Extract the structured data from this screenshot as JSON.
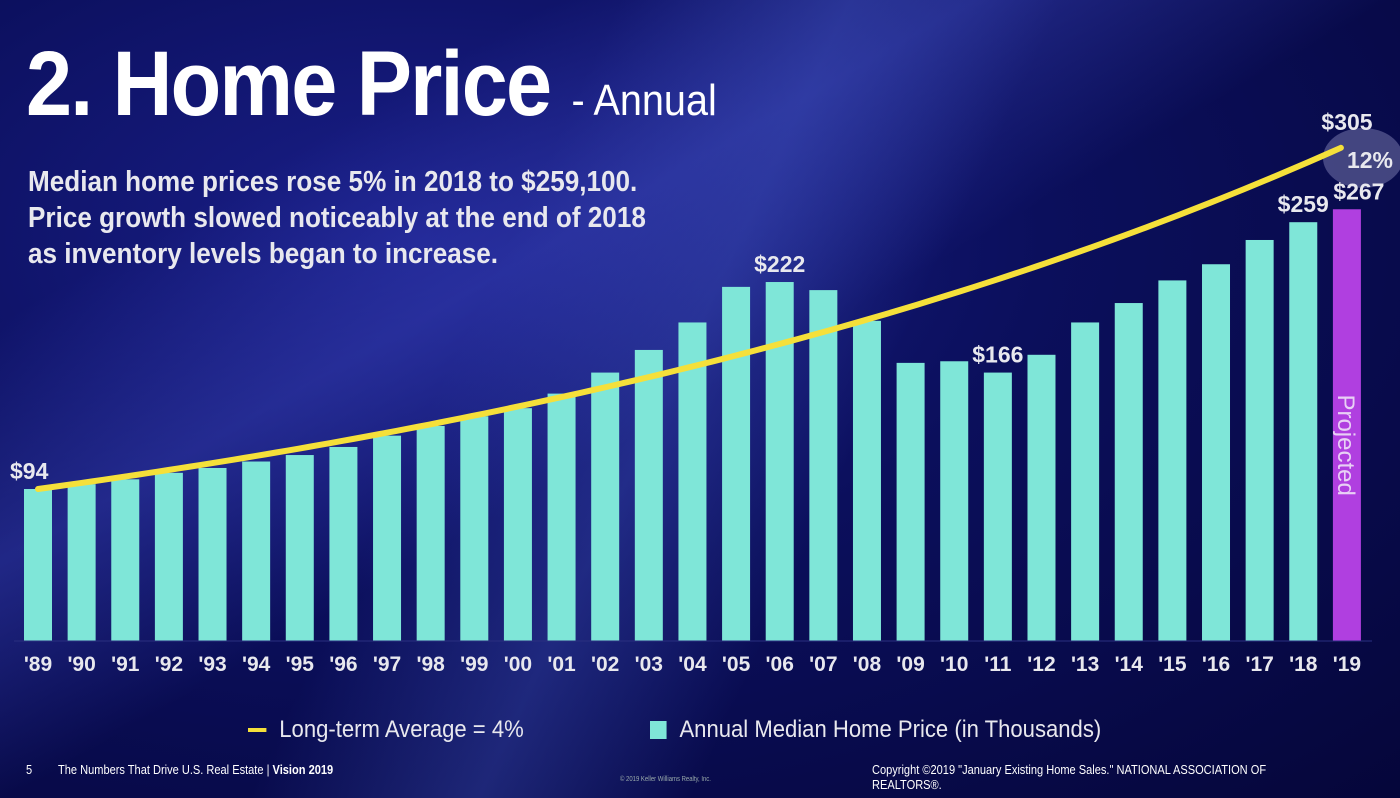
{
  "title": {
    "main": "2. Home Price",
    "sub": "- Annual"
  },
  "description": [
    "Median home prices rose 5% in 2018 to $259,100.",
    "Price growth slowed noticeably at the end of 2018",
    "as inventory levels began to increase."
  ],
  "chart_data": {
    "type": "bar",
    "categories": [
      "'89",
      "'90",
      "'91",
      "'92",
      "'93",
      "'94",
      "'95",
      "'96",
      "'97",
      "'98",
      "'99",
      "'00",
      "'01",
      "'02",
      "'03",
      "'04",
      "'05",
      "'06",
      "'07",
      "'08",
      "'09",
      "'10",
      "'11",
      "'12",
      "'13",
      "'14",
      "'15",
      "'16",
      "'17",
      "'18",
      "'19"
    ],
    "series": [
      {
        "name": "Annual Median Home Price (in Thousands)",
        "values": [
          94,
          97,
          100,
          104,
          107,
          111,
          115,
          120,
          127,
          133,
          139,
          144,
          153,
          166,
          180,
          197,
          219,
          222,
          217,
          198,
          172,
          173,
          166,
          177,
          197,
          209,
          223,
          233,
          248,
          259,
          267
        ]
      },
      {
        "name": "Long-term Average = 4%",
        "type": "line",
        "start": 94,
        "end": 305,
        "rate_percent": 4
      }
    ],
    "projected_category": "'19",
    "projected_label": "Projected",
    "data_labels": [
      {
        "category": "'89",
        "text": "$94"
      },
      {
        "category": "'06",
        "text": "$222"
      },
      {
        "category": "'11",
        "text": "$166"
      },
      {
        "category": "'18",
        "text": "$259"
      },
      {
        "category": "'19",
        "text": "$267"
      }
    ],
    "trend_end_label": "$305",
    "growth_badge": "12%",
    "ylim": [
      0,
      330
    ],
    "grid": false,
    "legend_position": "bottom",
    "colors": {
      "bar": "#7fe6d8",
      "projected": "#b03fe0",
      "line": "#f5e03a"
    }
  },
  "legend": {
    "line": "Long-term Average = 4%",
    "bar": "Annual Median Home Price (in Thousands)"
  },
  "footer": {
    "page": "5",
    "left": "The Numbers That Drive U.S. Real Estate | ",
    "left_bold": "Vision 2019",
    "center": "© 2019 Keller Williams Realty, Inc.",
    "right": "Copyright ©2019 \"January Existing Home Sales.\" NATIONAL ASSOCIATION OF REALTORS®."
  }
}
